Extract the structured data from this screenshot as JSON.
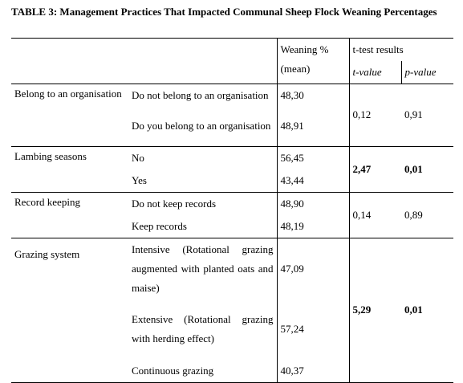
{
  "title": "TABLE 3: Management Practices That Impacted Communal Sheep Flock Weaning Percentages",
  "header": {
    "mean": "Weaning % (mean)",
    "ttest": "t-test results",
    "t": "t-value",
    "p": "p-value"
  },
  "table": {
    "groups": [
      {
        "label": "Belong to an organisation",
        "practices": [
          {
            "text": "Do not belong to an organisation",
            "mean": "48,30"
          },
          {
            "text": "Do you belong to an organisation",
            "mean": "48,91"
          }
        ],
        "t": "0,12",
        "p": "0,91",
        "bold": false
      },
      {
        "label": "Lambing seasons",
        "practices": [
          {
            "text": "No",
            "mean": "56,45"
          },
          {
            "text": "Yes",
            "mean": "43,44"
          }
        ],
        "t": "2,47",
        "p": "0,01",
        "bold": true
      },
      {
        "label": "Record keeping",
        "practices": [
          {
            "text": "Do not keep records",
            "mean": "48,90"
          },
          {
            "text": "Keep records",
            "mean": "48,19"
          }
        ],
        "t": "0,14",
        "p": "0,89",
        "bold": false
      },
      {
        "label": "Grazing system",
        "practices": [
          {
            "text": "Intensive (Rotational grazing augmented with planted oats and maise)",
            "mean": "47,09"
          },
          {
            "text": "Extensive (Rotational grazing with herding effect)",
            "mean": "57,24"
          },
          {
            "text": "Continuous grazing",
            "mean": "40,37"
          }
        ],
        "t": "5,29",
        "p": "0,01",
        "bold": true
      }
    ]
  }
}
